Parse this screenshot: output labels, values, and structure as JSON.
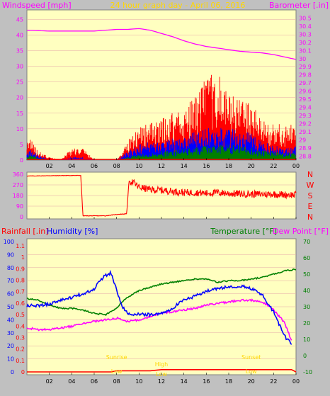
{
  "colors": {
    "panel_bg": "#c0c0c0",
    "plot_bg": "#ffffc0",
    "grid": "#e4a7a7",
    "wind": "#ff0000",
    "gust_blue": "#0000ff",
    "wind_green": "#008000",
    "barometer": "#ff00ff",
    "direction": "#ff0000",
    "humidity": "#0000ff",
    "temperature": "#008000",
    "dew_point": "#ff00ff",
    "rainfall": "#ff0000",
    "sun_label": "#ffd700"
  },
  "header": {
    "left_title": "Windspeed [mph]",
    "center_title": "24 hour graph day - April 06, 2016",
    "right_title": "Barometer [.in]"
  },
  "x_axis": {
    "tick_labels": [
      "02",
      "04",
      "06",
      "08",
      "10",
      "12",
      "14",
      "16",
      "18",
      "20",
      "22",
      "00"
    ],
    "range": [
      0,
      24
    ]
  },
  "chart_data": [
    {
      "type": "line",
      "name": "wind-and-barometer",
      "y_left_label": "Windspeed [mph]",
      "y_left_ticks": [
        0,
        5,
        10,
        15,
        20,
        25,
        30,
        35,
        40,
        45
      ],
      "y_left_range": [
        0,
        48
      ],
      "y_right_label": "Barometer [.in]",
      "y_right_ticks": [
        "28.8",
        "28.9",
        "29",
        "29.1",
        "29.2",
        "29.3",
        "29.4",
        "29.5",
        "29.6",
        "29.7",
        "29.8",
        "29.9",
        "30",
        "30.1",
        "30.2",
        "30.3",
        "30.4",
        "30.5"
      ],
      "y_right_range": [
        28.75,
        30.6
      ],
      "barometer": {
        "x": [
          0,
          2,
          4,
          6,
          7,
          8,
          9,
          10,
          11,
          12,
          13,
          14,
          15,
          16,
          17,
          18,
          19,
          20,
          21,
          22,
          23,
          24
        ],
        "y": [
          30.35,
          30.34,
          30.34,
          30.34,
          30.35,
          30.36,
          30.36,
          30.37,
          30.35,
          30.31,
          30.27,
          30.22,
          30.18,
          30.15,
          30.13,
          30.11,
          30.09,
          30.08,
          30.07,
          30.05,
          30.02,
          29.99
        ]
      },
      "wind_envelope": {
        "x": [
          0,
          1,
          2,
          3,
          4,
          5,
          6,
          7,
          8,
          9,
          10,
          11,
          12,
          13,
          14,
          15,
          16,
          17,
          18,
          19,
          20,
          21,
          22,
          23,
          24
        ],
        "peak": [
          9,
          3,
          1,
          0,
          4,
          4,
          0,
          0,
          0,
          6,
          12,
          12,
          13,
          16,
          17,
          21,
          27,
          28,
          22,
          21,
          18,
          13,
          12,
          11,
          12
        ],
        "blue": [
          4,
          2,
          0,
          0,
          1,
          1,
          0,
          0,
          0,
          3,
          5,
          6,
          6,
          7,
          8,
          9,
          10,
          11,
          10,
          10,
          9,
          6,
          5,
          4,
          5
        ],
        "green": [
          2,
          1,
          0,
          0,
          0,
          0,
          0,
          0,
          0,
          1,
          2,
          2,
          3,
          3,
          4,
          4,
          5,
          5,
          5,
          5,
          4,
          3,
          3,
          2,
          3
        ]
      }
    },
    {
      "type": "scatter",
      "name": "wind-direction",
      "y_left_ticks": [
        0,
        90,
        180,
        270,
        360
      ],
      "y_range": [
        0,
        360
      ],
      "y_right_labels": [
        "N",
        "W",
        "S",
        "E",
        "N"
      ],
      "x": [
        0,
        2,
        4,
        4.8,
        5.0,
        6,
        7,
        8,
        8.9,
        9.1,
        9.5,
        10,
        11,
        12,
        13,
        14,
        15,
        16,
        17,
        18,
        19,
        20,
        21,
        22,
        23,
        24
      ],
      "y": [
        345,
        348,
        350,
        350,
        8,
        8,
        8,
        20,
        25,
        300,
        290,
        250,
        230,
        225,
        215,
        205,
        205,
        200,
        205,
        198,
        195,
        192,
        190,
        192,
        188,
        185
      ]
    },
    {
      "type": "line",
      "name": "rain-humidity-temperature",
      "left_title_a": "Rainfall [.in]",
      "left_title_b": "Humidity [%]",
      "right_title_a": "Temperature [°F]",
      "right_title_b": "Dew Point [°F]",
      "humidity_ticks": [
        0,
        10,
        20,
        30,
        40,
        50,
        60,
        70,
        80,
        90,
        100
      ],
      "rain_ticks": [
        "0",
        "0.1",
        "0.2",
        "0.3",
        "0.4",
        "0.5",
        "0.6",
        "0.7",
        "0.8",
        "0.9",
        "1",
        "1.1"
      ],
      "temp_ticks": [
        -10,
        0,
        10,
        20,
        30,
        40,
        50,
        60,
        70
      ],
      "humidity": {
        "x": [
          0,
          1,
          2,
          3,
          4,
          5,
          6,
          6.5,
          7,
          7.5,
          8,
          8.5,
          9,
          10,
          11,
          12,
          13,
          14,
          15,
          16,
          17,
          18,
          19,
          20,
          21,
          22,
          23,
          23.6
        ],
        "y": [
          51,
          51,
          52,
          55,
          57,
          60,
          64,
          70,
          74,
          76,
          63,
          50,
          45,
          44,
          44,
          45,
          49,
          55,
          58,
          62,
          64,
          65,
          66,
          64,
          59,
          46,
          27,
          22
        ]
      },
      "temperature": {
        "x": [
          0,
          1,
          2,
          3,
          4,
          5,
          6,
          7,
          8,
          8.5,
          9,
          10,
          11,
          12,
          13,
          14,
          15,
          16,
          17,
          18,
          19,
          20,
          21,
          22,
          23,
          24
        ],
        "y": [
          35,
          34,
          31,
          29,
          29,
          28,
          26,
          25,
          29,
          33,
          36,
          40,
          42,
          44,
          45,
          46,
          47,
          47,
          45,
          46,
          46,
          47,
          48,
          50,
          52,
          53
        ]
      },
      "dew_point": {
        "x": [
          0,
          1,
          2,
          3,
          4,
          5,
          6,
          7,
          8,
          9,
          10,
          11,
          12,
          13,
          14,
          15,
          16,
          17,
          18,
          19,
          20,
          21,
          22,
          23,
          23.6
        ],
        "y": [
          17,
          16,
          16,
          17,
          18,
          20,
          21,
          22,
          23,
          21,
          22,
          24,
          26,
          27,
          28,
          29,
          31,
          32,
          33,
          34,
          34,
          33,
          28,
          20,
          9
        ]
      },
      "rainfall": {
        "x": [
          0,
          5,
          7.5,
          8,
          11,
          12,
          14,
          20,
          23.6,
          24
        ],
        "y": [
          0,
          0,
          0,
          0.01,
          0.01,
          0.02,
          0.02,
          0.02,
          0.02,
          0
        ]
      },
      "annotations": [
        "Sunrise",
        "Sunset",
        "Low",
        "High",
        "Low",
        "Low"
      ]
    }
  ]
}
